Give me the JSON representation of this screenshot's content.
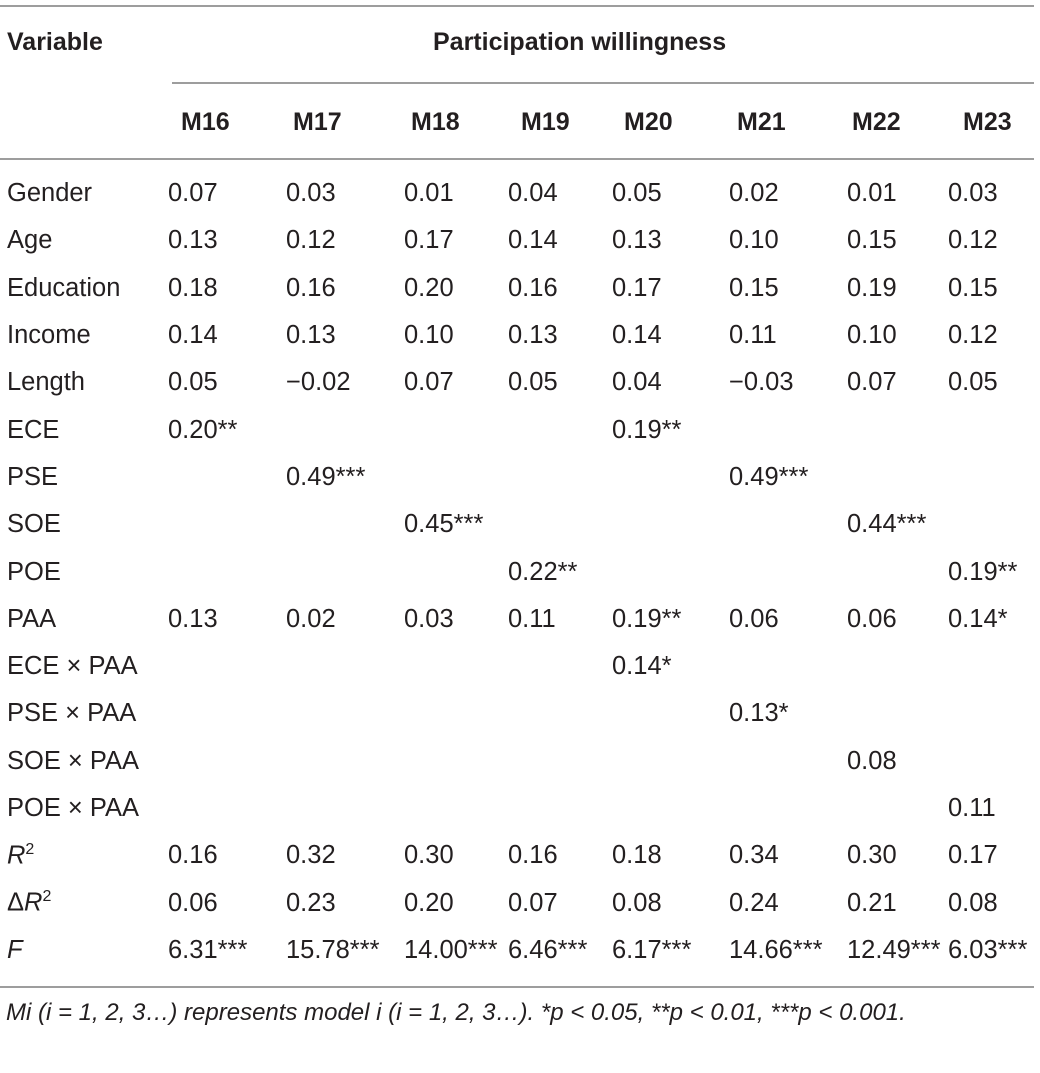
{
  "header": {
    "variable": "Variable",
    "group": "Participation willingness",
    "models": [
      "M16",
      "M17",
      "M18",
      "M19",
      "M20",
      "M21",
      "M22",
      "M23"
    ]
  },
  "rows": [
    {
      "label": "Gender",
      "cells": [
        "0.07",
        "0.03",
        "0.01",
        "0.04",
        "0.05",
        "0.02",
        "0.01",
        "0.03"
      ]
    },
    {
      "label": "Age",
      "cells": [
        "0.13",
        "0.12",
        "0.17",
        "0.14",
        "0.13",
        "0.10",
        "0.15",
        "0.12"
      ]
    },
    {
      "label": "Education",
      "cells": [
        "0.18",
        "0.16",
        "0.20",
        "0.16",
        "0.17",
        "0.15",
        "0.19",
        "0.15"
      ]
    },
    {
      "label": "Income",
      "cells": [
        "0.14",
        "0.13",
        "0.10",
        "0.13",
        "0.14",
        "0.11",
        "0.10",
        "0.12"
      ]
    },
    {
      "label": "Length",
      "cells": [
        "0.05",
        "−0.02",
        "0.07",
        "0.05",
        "0.04",
        "−0.03",
        "0.07",
        "0.05"
      ]
    },
    {
      "label": "ECE",
      "cells": [
        "0.20**",
        "",
        "",
        "",
        "0.19**",
        "",
        "",
        ""
      ]
    },
    {
      "label": "PSE",
      "cells": [
        "",
        "0.49***",
        "",
        "",
        "",
        "0.49***",
        "",
        ""
      ]
    },
    {
      "label": "SOE",
      "cells": [
        "",
        "",
        "0.45***",
        "",
        "",
        "",
        "0.44***",
        ""
      ]
    },
    {
      "label": "POE",
      "cells": [
        "",
        "",
        "",
        "0.22**",
        "",
        "",
        "",
        "0.19**"
      ]
    },
    {
      "label": "PAA",
      "cells": [
        "0.13",
        "0.02",
        "0.03",
        "0.11",
        "0.19**",
        "0.06",
        "0.06",
        "0.14*"
      ]
    },
    {
      "label": "ECE × PAA",
      "cells": [
        "",
        "",
        "",
        "",
        "0.14*",
        "",
        "",
        ""
      ]
    },
    {
      "label": "PSE × PAA",
      "cells": [
        "",
        "",
        "",
        "",
        "",
        "0.13*",
        "",
        ""
      ]
    },
    {
      "label": "SOE × PAA",
      "cells": [
        "",
        "",
        "",
        "",
        "",
        "",
        "0.08",
        ""
      ]
    },
    {
      "label": "POE × PAA",
      "cells": [
        "",
        "",
        "",
        "",
        "",
        "",
        "",
        "0.11"
      ]
    },
    {
      "label": "R2",
      "cells": [
        "0.16",
        "0.32",
        "0.30",
        "0.16",
        "0.18",
        "0.34",
        "0.30",
        "0.17"
      ]
    },
    {
      "label": "ΔR2",
      "cells": [
        "0.06",
        "0.23",
        "0.20",
        "0.07",
        "0.08",
        "0.24",
        "0.21",
        "0.08"
      ]
    },
    {
      "label": "F",
      "cells": [
        "6.31***",
        "15.78***",
        "14.00***",
        "6.46***",
        "6.17***",
        "14.66***",
        "12.49***",
        "6.03***"
      ]
    }
  ],
  "footnote": "Mi (i = 1, 2, 3…) represents model i (i = 1, 2, 3…). *p < 0.05, **p < 0.01, ***p < 0.001."
}
